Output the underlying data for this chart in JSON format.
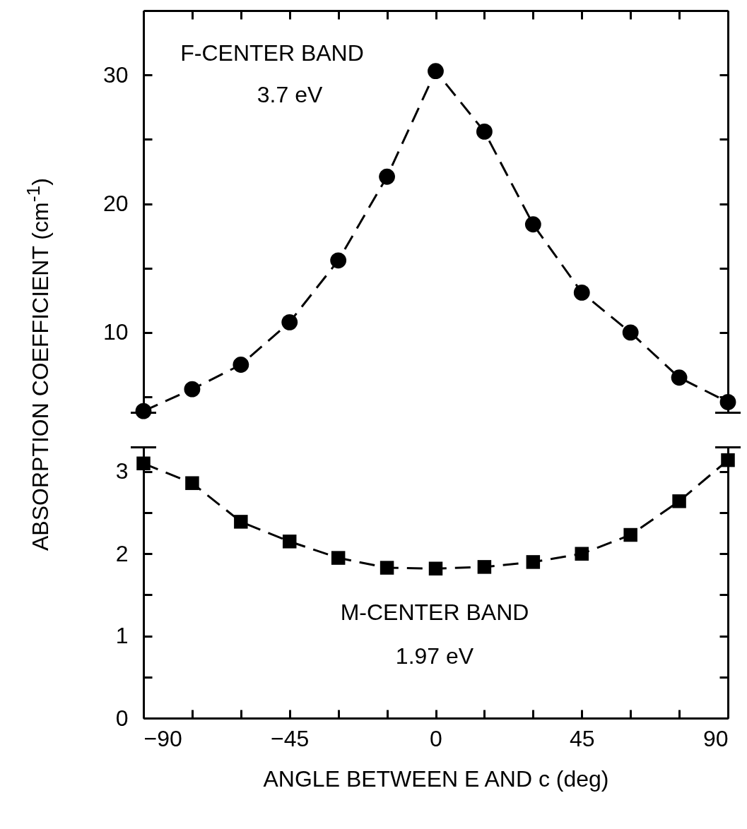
{
  "chart_data": [
    {
      "type": "line",
      "x": [
        -90,
        -75,
        -60,
        -45,
        -30,
        -15,
        0,
        15,
        30,
        45,
        60,
        75,
        90
      ],
      "values": [
        3.9,
        5.6,
        7.5,
        10.8,
        15.6,
        22.1,
        30.3,
        25.6,
        18.4,
        13.1,
        10.0,
        6.5,
        4.6
      ],
      "color": "#000000",
      "marker": "circle",
      "line_style": "dashed",
      "xlim": [
        -90,
        90
      ],
      "xticks": [
        {
          "value": -90,
          "label": null
        },
        {
          "value": -75,
          "label": null
        },
        {
          "value": -60,
          "label": null
        },
        {
          "value": -45,
          "label": null
        },
        {
          "value": -30,
          "label": null
        },
        {
          "value": -15,
          "label": null
        },
        {
          "value": 0,
          "label": null
        },
        {
          "value": 15,
          "label": null
        },
        {
          "value": 30,
          "label": null
        },
        {
          "value": 45,
          "label": null
        },
        {
          "value": 60,
          "label": null
        },
        {
          "value": 75,
          "label": null
        },
        {
          "value": 90,
          "label": null
        }
      ],
      "ylim": [
        3.8,
        35
      ],
      "yticks": [
        {
          "value": 5,
          "label": null
        },
        10,
        {
          "value": 15,
          "label": null
        },
        20,
        {
          "value": 25,
          "label": null
        },
        30
      ],
      "tick_labels": "y",
      "ylabel": "ABSORPTION COEFFICIENT (cm$^{-1}$)",
      "annotations": [
        "F-CENTER BAND",
        "3.7 eV"
      ]
    },
    {
      "type": "line",
      "x": [
        -90,
        -75,
        -60,
        -45,
        -30,
        -15,
        0,
        15,
        30,
        45,
        60,
        75,
        90
      ],
      "values": [
        3.1,
        2.86,
        2.39,
        2.15,
        1.95,
        1.83,
        1.82,
        1.84,
        1.9,
        2.0,
        2.23,
        2.64,
        3.14
      ],
      "color": "#000000",
      "marker": "square",
      "line_style": "dashed",
      "xlim": [
        -90,
        90
      ],
      "xticks": [
        -90,
        {
          "value": -75,
          "label": null
        },
        {
          "value": -60,
          "label": null
        },
        -45,
        {
          "value": -30,
          "label": null
        },
        {
          "value": -15,
          "label": null
        },
        0,
        {
          "value": 15,
          "label": null
        },
        {
          "value": 30,
          "label": null
        },
        45,
        {
          "value": 60,
          "label": null
        },
        {
          "value": 75,
          "label": null
        },
        90
      ],
      "ylim": [
        0,
        3.3
      ],
      "yticks": [
        0,
        {
          "value": 0.5,
          "label": null
        },
        1,
        {
          "value": 1.5,
          "label": null
        },
        2,
        {
          "value": 2.5,
          "label": null
        },
        3
      ],
      "xlabel": "ANGLE BETWEEN E AND c (deg)",
      "annotations": [
        "M-CENTER BAND",
        "1.97 eV"
      ]
    }
  ]
}
